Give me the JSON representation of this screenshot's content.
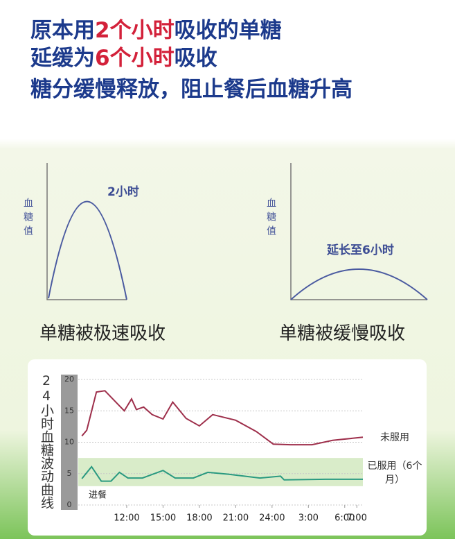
{
  "header": {
    "lines": [
      [
        "原本用",
        "2个小时",
        "吸收的单糖"
      ],
      [
        "延缓为",
        "6个小时",
        "吸收"
      ],
      [
        "糖分缓慢释放，阻止餐后血糖升高"
      ]
    ]
  },
  "diagrams": [
    {
      "y_label": "血糖值",
      "peak_label": "2小时",
      "caption": "单糖被极速吸收"
    },
    {
      "y_label": "血糖值",
      "peak_label": "延长至6小时",
      "caption": "单糖被缓慢吸收"
    }
  ],
  "chart_data": {
    "type": "line",
    "y_label": "24小时血糖波动曲线",
    "xlim": [
      8,
      31.5
    ],
    "xticks": [
      {
        "value": 12,
        "label": "12:00"
      },
      {
        "value": 15,
        "label": "15:00"
      },
      {
        "value": 18,
        "label": "18:00"
      },
      {
        "value": 21,
        "label": "21:00"
      },
      {
        "value": 24,
        "label": "24:00"
      },
      {
        "value": 27,
        "label": "3:00"
      },
      {
        "value": 30,
        "label": "6:00"
      },
      {
        "value": 31,
        "label": "7:00"
      }
    ],
    "ylim": [
      0,
      20
    ],
    "yticks": [
      0,
      5,
      10,
      15,
      20
    ],
    "grid": true,
    "band": [
      3,
      7.5
    ],
    "band_color": "#d9ecc9",
    "annotation": "进餐",
    "series": [
      {
        "name": "未服用",
        "color": "#9e2f4b",
        "x": [
          8.3,
          8.7,
          9.5,
          10.2,
          11.0,
          11.8,
          12.4,
          12.8,
          13.4,
          14.1,
          15.0,
          15.8,
          16.9,
          18.0,
          19.1,
          21.0,
          22.7,
          24.1,
          25.5,
          27.3,
          29.0,
          31.5
        ],
        "values": [
          11.0,
          11.9,
          18.0,
          18.2,
          16.6,
          15.0,
          16.9,
          15.2,
          15.6,
          14.4,
          13.7,
          16.4,
          13.8,
          12.6,
          14.4,
          13.5,
          11.7,
          9.7,
          9.6,
          9.6,
          10.3,
          10.8
        ]
      },
      {
        "name": "已服用（6个月）",
        "color": "#2a9a80",
        "x": [
          8.3,
          9.1,
          9.9,
          10.7,
          11.4,
          12.1,
          13.3,
          15.0,
          16.0,
          17.5,
          18.7,
          20.4,
          23.0,
          24.7,
          25.0,
          28.4,
          31.5
        ],
        "values": [
          4.2,
          6.1,
          3.8,
          3.8,
          5.2,
          4.3,
          4.3,
          5.5,
          4.3,
          4.3,
          5.2,
          4.9,
          4.3,
          4.6,
          4.0,
          4.1,
          4.1
        ]
      }
    ]
  }
}
